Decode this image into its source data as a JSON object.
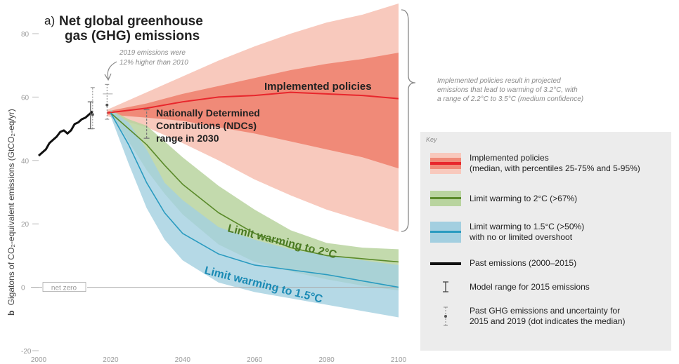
{
  "chart_data": {
    "type": "area",
    "panel_letter": "a)",
    "title": "Net global greenhouse gas (GHG) emissions",
    "xlabel": "",
    "ylabel": "Gigatons of CO₂-equivalent emissions (GtCO₂-eq/yr)",
    "ylabel_prefix": "b",
    "xlim": [
      2000,
      2100
    ],
    "ylim": [
      -20,
      80
    ],
    "x_ticks": [
      2000,
      2020,
      2040,
      2060,
      2080,
      2100
    ],
    "y_ticks": [
      -20,
      0,
      20,
      40,
      60,
      80
    ],
    "net_zero_label": "net zero",
    "past_emissions": {
      "x": [
        2000,
        2001,
        2002,
        2003,
        2004,
        2005,
        2006,
        2007,
        2008,
        2009,
        2010,
        2011,
        2012,
        2013,
        2014,
        2015
      ],
      "y": [
        41.5,
        42.5,
        43.5,
        45.5,
        46.5,
        47.5,
        49,
        49.5,
        48.5,
        49.5,
        51.5,
        52,
        53,
        53.5,
        54.5,
        55.5
      ]
    },
    "model_range_2015": {
      "x": 2015,
      "low": 50,
      "high": 58.5
    },
    "past_uncertainty": [
      {
        "x": 2015,
        "median": 54.5,
        "low": 50,
        "high": 63
      },
      {
        "x": 2019,
        "median": 57.5,
        "low": 53,
        "high": 64
      }
    ],
    "ndc_range_2030": {
      "x": 2030,
      "low": 47,
      "high": 56
    },
    "series": [
      {
        "name": "Implemented policies",
        "x": [
          2019,
          2030,
          2040,
          2050,
          2060,
          2070,
          2080,
          2090,
          2100
        ],
        "median": [
          55,
          56.5,
          58.5,
          60,
          60.5,
          61.5,
          61,
          60.5,
          59.5
        ],
        "p25": [
          54.5,
          53.5,
          52.5,
          50.5,
          48.5,
          46,
          43.5,
          41,
          37.5
        ],
        "p75": [
          55.5,
          58,
          61,
          63.5,
          66,
          68.5,
          70.5,
          72,
          74
        ],
        "p5": [
          54,
          50.5,
          45.5,
          40,
          34,
          29,
          24.5,
          21,
          17.5
        ],
        "p95": [
          56,
          61.5,
          66.5,
          71.5,
          76,
          80,
          83.5,
          86,
          89.5
        ]
      },
      {
        "name": "Limit warming to 2°C (>67%)",
        "x": [
          2020,
          2025,
          2030,
          2035,
          2040,
          2050,
          2060,
          2070,
          2080,
          2090,
          2100
        ],
        "median": [
          55,
          50,
          45,
          38.5,
          32.5,
          23.5,
          17,
          12.5,
          10,
          9,
          8
        ],
        "low": [
          55,
          46,
          37,
          29.5,
          23,
          13.5,
          8,
          5,
          2.5,
          0.5,
          -1
        ],
        "high": [
          56,
          53,
          51,
          46,
          41,
          32,
          24.5,
          18,
          14,
          12.5,
          12
        ]
      },
      {
        "name": "Limit warming to 1.5°C (>50%)",
        "x": [
          2020,
          2025,
          2030,
          2035,
          2040,
          2050,
          2060,
          2070,
          2080,
          2090,
          2100
        ],
        "median": [
          55,
          45,
          33,
          23.5,
          17,
          10.5,
          7,
          5.5,
          4,
          2,
          0
        ],
        "low": [
          54,
          39,
          25,
          15,
          8.5,
          1.5,
          -1.5,
          -3.5,
          -5.5,
          -7.5,
          -9.5
        ],
        "high": [
          56,
          52,
          43.5,
          33,
          27.5,
          19,
          15,
          12,
          10,
          8.5,
          7
        ]
      }
    ],
    "annotations": {
      "note_2019_line1": "2019 emissions were",
      "note_2019_line2": "12% higher than 2010",
      "implemented_label": "Implemented policies",
      "ndc_line1": "Nationally Determined",
      "ndc_line2": "Contributions (NDCs)",
      "ndc_line3": "range in 2030",
      "label_2c": "Limit warming to 2°C",
      "label_15c": "Limit warming to 1.5°C",
      "brace_line1": "Implemented policies result in projected",
      "brace_line2": "emissions that lead to warming of 3.2°C, with",
      "brace_line3": "a range of 2.2°C to 3.5°C (medium confidence)"
    },
    "legend": {
      "position": "right",
      "title": "Key",
      "items": [
        {
          "id": "implemented",
          "line1": "Implemented policies",
          "line2": "(median, with percentiles 25-75% and 5-95%)"
        },
        {
          "id": "two",
          "line1": "Limit warming to 2°C (>67%)",
          "line2": ""
        },
        {
          "id": "onefive",
          "line1": "Limit warming to 1.5°C (>50%)",
          "line2": "with no or limited overshoot"
        },
        {
          "id": "past",
          "line1": "Past emissions (2000–2015)",
          "line2": ""
        },
        {
          "id": "model",
          "line1": "Model range for 2015 emissions",
          "line2": ""
        },
        {
          "id": "uncert",
          "line1": "Past GHG emissions and uncertainty for",
          "line2": "2015 and 2019 (dot indicates the median)"
        }
      ]
    },
    "colors": {
      "implemented_line": "#e8262c",
      "implemented_inner": "#f08a78",
      "implemented_outer": "#f8c9bd",
      "two_line": "#5a8a2a",
      "two_band": "#b9d49f",
      "onefive_line": "#2a9bc0",
      "onefive_band": "#a3cfe0",
      "past_line": "#111111",
      "label_2c": "#4a7a22",
      "label_15c": "#1a8ab4"
    }
  }
}
